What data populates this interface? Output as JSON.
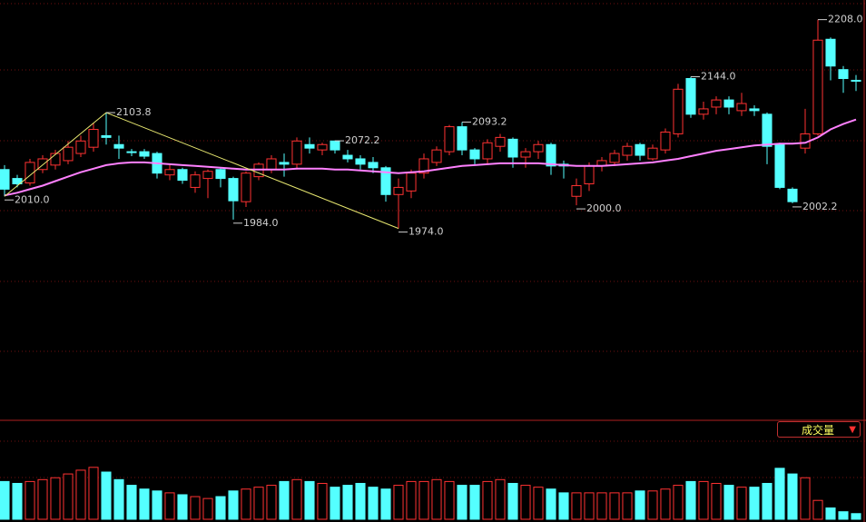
{
  "chart_data": {
    "type": "candlestick",
    "open": [
      2040,
      2030,
      2025,
      2040,
      2045,
      2050,
      2058,
      2065,
      2078,
      2068,
      2060,
      2060,
      2058,
      2034,
      2040,
      2020,
      2030,
      2040,
      2030,
      2004,
      2032,
      2040,
      2048,
      2046,
      2068,
      2062,
      2072,
      2056,
      2052,
      2048,
      2042,
      2012,
      2016,
      2036,
      2048,
      2060,
      2088,
      2062,
      2052,
      2066,
      2074,
      2054,
      2060,
      2068,
      2046,
      2010,
      2024,
      2044,
      2048,
      2056,
      2068,
      2052,
      2062,
      2080,
      2142,
      2102,
      2110,
      2118,
      2106,
      2108,
      2102,
      2068,
      2018,
      2064,
      2080,
      2186,
      2152,
      2140
    ],
    "high": [
      2045,
      2034,
      2052,
      2056,
      2062,
      2072,
      2078,
      2092,
      2103.8,
      2078,
      2063,
      2063,
      2060,
      2046,
      2042,
      2038,
      2040,
      2042,
      2032,
      2038,
      2048,
      2056,
      2058,
      2076,
      2076,
      2070,
      2072.2,
      2062,
      2056,
      2054,
      2044,
      2030,
      2040,
      2058,
      2066,
      2090,
      2093.2,
      2064,
      2074,
      2080,
      2076,
      2064,
      2072,
      2070,
      2050,
      2030,
      2048,
      2054,
      2062,
      2070,
      2070,
      2068,
      2086,
      2136,
      2144,
      2116,
      2122,
      2122,
      2126,
      2112,
      2104,
      2070,
      2020,
      2108,
      2208,
      2188,
      2156,
      2146
    ],
    "low": [
      2010,
      2020,
      2022,
      2036,
      2040,
      2046,
      2054,
      2060,
      2068,
      2052,
      2055,
      2052,
      2030,
      2028,
      2024,
      2014,
      2008,
      2020,
      1984,
      1998,
      2028,
      2036,
      2032,
      2040,
      2058,
      2056,
      2058,
      2048,
      2040,
      2036,
      2004,
      1974,
      2008,
      2030,
      2044,
      2056,
      2056,
      2046,
      2046,
      2060,
      2042,
      2042,
      2052,
      2034,
      2030,
      2000,
      2016,
      2038,
      2044,
      2050,
      2050,
      2050,
      2058,
      2076,
      2098,
      2096,
      2102,
      2102,
      2100,
      2100,
      2046,
      2018,
      2002.2,
      2058,
      2078,
      2140,
      2126,
      2128
    ],
    "close": [
      2018,
      2024,
      2048,
      2052,
      2058,
      2065,
      2072,
      2085,
      2076,
      2064,
      2059,
      2055,
      2036,
      2040,
      2028,
      2034,
      2038,
      2030,
      2005,
      2036,
      2046,
      2052,
      2046,
      2072,
      2064,
      2068,
      2062,
      2052,
      2046,
      2042,
      2012,
      2020,
      2036,
      2052,
      2062,
      2088,
      2062,
      2052,
      2070,
      2076,
      2054,
      2060,
      2068,
      2044,
      2044,
      2022,
      2044,
      2050,
      2058,
      2066,
      2056,
      2064,
      2082,
      2130,
      2102,
      2108,
      2118,
      2110,
      2114,
      2106,
      2066,
      2020,
      2004,
      2080,
      2185,
      2156,
      2142,
      2139
    ],
    "ma": [
      2011,
      2014,
      2018,
      2022,
      2027,
      2032,
      2037,
      2041,
      2045,
      2047,
      2048,
      2048,
      2047,
      2046,
      2045,
      2044,
      2043,
      2042,
      2041,
      2040,
      2040,
      2040,
      2040,
      2041,
      2041,
      2041,
      2040,
      2040,
      2039,
      2038,
      2037,
      2036,
      2037,
      2038,
      2040,
      2042,
      2044,
      2045,
      2046,
      2047,
      2047,
      2047,
      2047,
      2046,
      2045,
      2044,
      2044,
      2044,
      2045,
      2046,
      2047,
      2048,
      2050,
      2052,
      2055,
      2058,
      2061,
      2063,
      2065,
      2067,
      2068,
      2069,
      2069,
      2070,
      2076,
      2085,
      2091,
      2096
    ],
    "ylim": [
      1760,
      2230
    ],
    "annotations": [
      {
        "value": 2010.0,
        "label": "2010.0"
      },
      {
        "value": 2103.8,
        "label": "2103.8"
      },
      {
        "value": 1974.0,
        "label": "1974.0"
      },
      {
        "value": 1984.0,
        "label": "1984.0"
      },
      {
        "value": 2072.2,
        "label": "2072.2"
      },
      {
        "value": 2093.2,
        "label": "2093.2"
      },
      {
        "value": 2000.0,
        "label": "2000.0"
      },
      {
        "value": 2144.0,
        "label": "2144.0"
      },
      {
        "value": 2002.2,
        "label": "2002.2"
      },
      {
        "value": 2208.0,
        "label": "2208.0"
      }
    ],
    "volume": [
      40,
      38,
      40,
      42,
      44,
      48,
      52,
      55,
      50,
      42,
      36,
      32,
      30,
      28,
      26,
      24,
      22,
      24,
      30,
      32,
      34,
      36,
      40,
      42,
      40,
      38,
      34,
      36,
      38,
      34,
      32,
      36,
      40,
      40,
      42,
      40,
      36,
      36,
      40,
      42,
      38,
      36,
      34,
      32,
      28,
      28,
      28,
      28,
      28,
      28,
      30,
      30,
      32,
      36,
      40,
      40,
      38,
      36,
      34,
      34,
      38,
      54,
      48,
      44,
      20,
      12,
      8,
      6
    ],
    "volume_ylim": [
      0,
      100
    ],
    "indicator_button": "成交量",
    "up_color": "#ff3232",
    "down_color": "#54ffff",
    "ma_color": "#ff80ff",
    "trend_color": "#e8e870"
  }
}
